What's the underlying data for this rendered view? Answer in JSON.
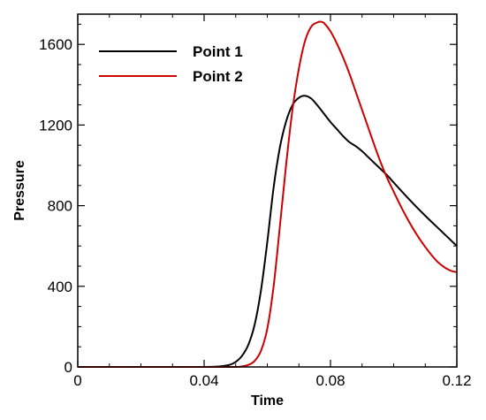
{
  "chart_data": {
    "type": "line",
    "title": "",
    "xlabel": "Time",
    "ylabel": "Pressure",
    "xlim": [
      0,
      0.12
    ],
    "ylim": [
      0,
      1750
    ],
    "x_ticks": [
      0,
      0.04,
      0.08,
      0.12
    ],
    "x_tick_labels": [
      "0",
      "0.04",
      "0.08",
      "0.12"
    ],
    "y_ticks": [
      0,
      400,
      800,
      1200,
      1600
    ],
    "y_tick_labels": [
      "0",
      "400",
      "800",
      "1200",
      "1600"
    ],
    "grid": false,
    "legend_position": "top-left",
    "series": [
      {
        "name": "Point 1",
        "color": "#000000",
        "x": [
          0,
          0.02,
          0.04,
          0.045,
          0.048,
          0.05,
          0.052,
          0.054,
          0.056,
          0.058,
          0.06,
          0.062,
          0.064,
          0.066,
          0.068,
          0.07,
          0.072,
          0.074,
          0.076,
          0.078,
          0.08,
          0.082,
          0.084,
          0.086,
          0.088,
          0.09,
          0.092,
          0.094,
          0.096,
          0.098,
          0.1,
          0.105,
          0.11,
          0.115,
          0.12
        ],
        "y": [
          0,
          0,
          0,
          3,
          10,
          25,
          55,
          110,
          210,
          380,
          620,
          890,
          1090,
          1220,
          1300,
          1335,
          1345,
          1330,
          1295,
          1255,
          1215,
          1180,
          1145,
          1115,
          1095,
          1070,
          1040,
          1010,
          980,
          950,
          915,
          830,
          750,
          675,
          600
        ]
      },
      {
        "name": "Point 2",
        "color": "#cc0000",
        "x": [
          0,
          0.02,
          0.04,
          0.05,
          0.052,
          0.054,
          0.056,
          0.058,
          0.06,
          0.062,
          0.064,
          0.066,
          0.068,
          0.07,
          0.072,
          0.074,
          0.076,
          0.077,
          0.078,
          0.08,
          0.082,
          0.084,
          0.086,
          0.088,
          0.09,
          0.092,
          0.094,
          0.096,
          0.098,
          0.1,
          0.102,
          0.104,
          0.106,
          0.108,
          0.11,
          0.112,
          0.114,
          0.116,
          0.118,
          0.12
        ],
        "y": [
          0,
          0,
          0,
          0,
          3,
          10,
          30,
          80,
          190,
          400,
          700,
          1010,
          1280,
          1480,
          1620,
          1690,
          1710,
          1712,
          1705,
          1665,
          1605,
          1535,
          1455,
          1365,
          1275,
          1185,
          1095,
          1010,
          935,
          870,
          805,
          745,
          690,
          640,
          595,
          555,
          520,
          495,
          478,
          470
        ]
      }
    ]
  }
}
